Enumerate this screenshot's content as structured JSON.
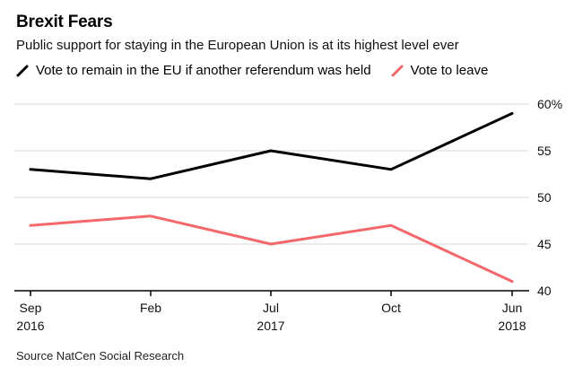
{
  "title": "Brexit Fears",
  "subtitle": "Public support for staying in the European Union is at its highest level ever",
  "source": "Source NatCen Social Research",
  "colors": {
    "remain": "#000000",
    "leave": "#f4676a",
    "grid": "#d9d9d9",
    "axis": "#000000"
  },
  "chart_data": {
    "type": "line",
    "x": [
      "Sep 2016",
      "Feb 2017",
      "Jul 2017",
      "Oct 2017",
      "Jun 2018"
    ],
    "x_tick_labels": [
      {
        "line1": "Sep",
        "line2": "2016"
      },
      {
        "line1": "Feb",
        "line2": ""
      },
      {
        "line1": "Jul",
        "line2": "2017"
      },
      {
        "line1": "Oct",
        "line2": ""
      },
      {
        "line1": "Jun",
        "line2": "2018"
      }
    ],
    "series": [
      {
        "name": "Vote to remain in the EU if another referendum was held",
        "color": "#000000",
        "values": [
          53,
          52,
          55,
          53,
          59
        ]
      },
      {
        "name": "Vote to leave",
        "color": "#f4676a",
        "values": [
          47,
          48,
          45,
          47,
          41
        ]
      }
    ],
    "ylim": [
      40,
      60
    ],
    "y_ticks": [
      {
        "value": 60,
        "label": "60%"
      },
      {
        "value": 55,
        "label": "55"
      },
      {
        "value": 50,
        "label": "50"
      },
      {
        "value": 45,
        "label": "45"
      },
      {
        "value": 40,
        "label": "40"
      }
    ],
    "y_axis_position": "right",
    "grid": true,
    "legend_position": "top-left",
    "xlabel": "",
    "ylabel": ""
  }
}
